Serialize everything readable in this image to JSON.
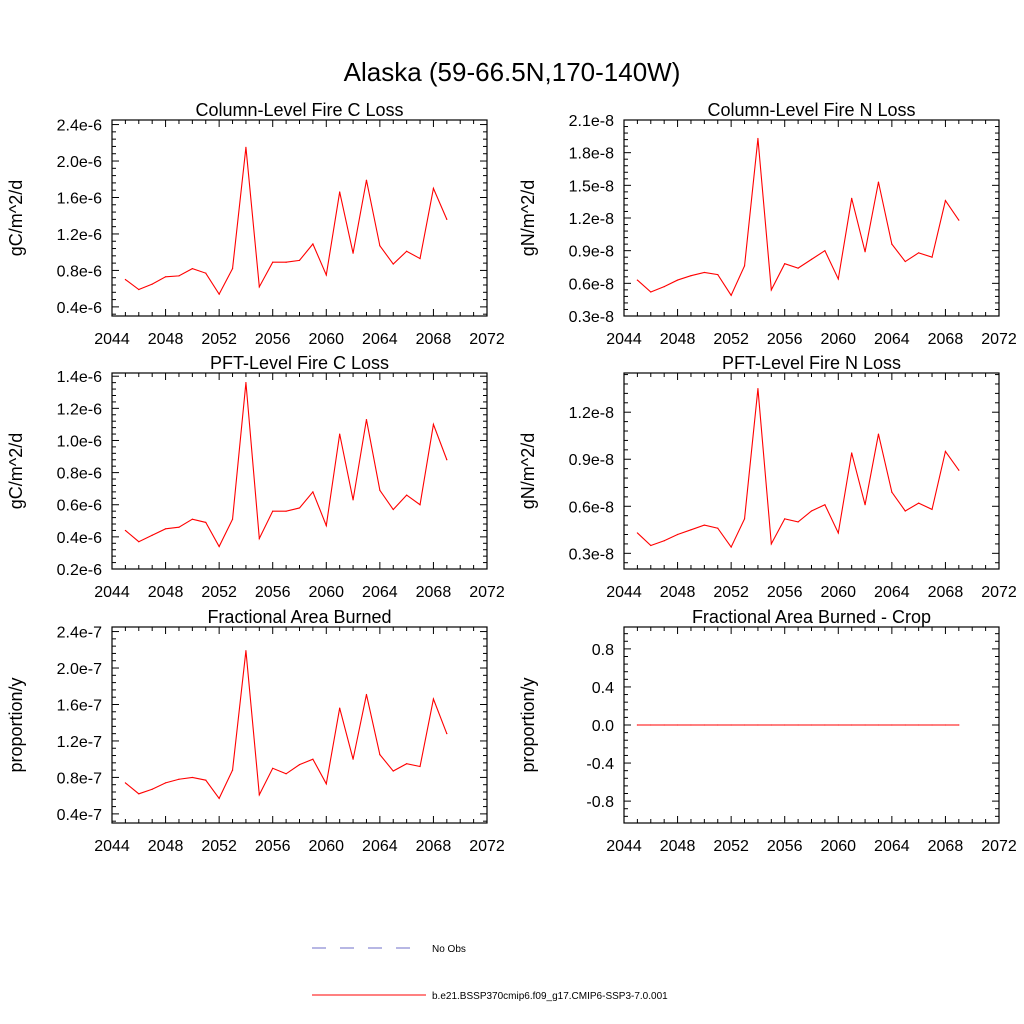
{
  "title": "Alaska (59-66.5N,170-140W)",
  "colors": {
    "series": "#ff0000",
    "obs": "#6f6fc8",
    "axis": "#000000"
  },
  "legend": {
    "obs_label": "No Obs",
    "series_label": "b.e21.BSSP370cmip6.f09_g17.CMIP6-SSP3-7.0.001"
  },
  "chart_data": [
    {
      "type": "line",
      "title": "Column-Level Fire C Loss",
      "ylabel": "gC/m^2/d",
      "xlim": [
        2044,
        2072
      ],
      "ylim": [
        3e-07,
        2.45e-06
      ],
      "xticks": [
        2044,
        2048,
        2052,
        2056,
        2060,
        2064,
        2068,
        2072
      ],
      "yticks": [
        4e-07,
        8e-07,
        1.2e-06,
        1.6e-06,
        2e-06,
        2.4e-06
      ],
      "ytick_labels": [
        "0.4e-6",
        "0.8e-6",
        "1.2e-6",
        "1.6e-6",
        "2.0e-6",
        "2.4e-6"
      ],
      "series": [
        {
          "x": [
            2045,
            2046,
            2047,
            2048,
            2049,
            2050,
            2051,
            2052,
            2053,
            2054,
            2055,
            2056,
            2057,
            2058,
            2059,
            2060,
            2061,
            2062,
            2063,
            2064,
            2065,
            2066,
            2067,
            2068,
            2069
          ],
          "y": [
            7e-07,
            5.9e-07,
            6.5e-07,
            7.3e-07,
            7.4e-07,
            8.2e-07,
            7.7e-07,
            5.4e-07,
            8.2e-07,
            2.15e-06,
            6.2e-07,
            8.9e-07,
            8.9e-07,
            9.1e-07,
            1.09e-06,
            7.5e-07,
            1.66e-06,
            9.9e-07,
            1.79e-06,
            1.07e-06,
            8.7e-07,
            1.01e-06,
            9.3e-07,
            1.7e-06,
            1.36e-06
          ]
        }
      ]
    },
    {
      "type": "line",
      "title": "Column-Level Fire N Loss",
      "ylabel": "gN/m^2/d",
      "xlim": [
        2044,
        2072
      ],
      "ylim": [
        3e-09,
        2.1e-08
      ],
      "xticks": [
        2044,
        2048,
        2052,
        2056,
        2060,
        2064,
        2068,
        2072
      ],
      "yticks": [
        3e-09,
        6e-09,
        9e-09,
        1.2e-08,
        1.5e-08,
        1.8e-08,
        2.1e-08
      ],
      "ytick_labels": [
        "0.3e-8",
        "0.6e-8",
        "0.9e-8",
        "1.2e-8",
        "1.5e-8",
        "1.8e-8",
        "2.1e-8"
      ],
      "series": [
        {
          "x": [
            2045,
            2046,
            2047,
            2048,
            2049,
            2050,
            2051,
            2052,
            2053,
            2054,
            2055,
            2056,
            2057,
            2058,
            2059,
            2060,
            2061,
            2062,
            2063,
            2064,
            2065,
            2066,
            2067,
            2068,
            2069
          ],
          "y": [
            6.3e-09,
            5.2e-09,
            5.7e-09,
            6.3e-09,
            6.7e-09,
            7e-09,
            6.8e-09,
            4.9e-09,
            7.6e-09,
            1.93e-08,
            5.4e-09,
            7.8e-09,
            7.4e-09,
            8.2e-09,
            9e-09,
            6.4e-09,
            1.38e-08,
            8.9e-09,
            1.53e-08,
            9.6e-09,
            8e-09,
            8.8e-09,
            8.4e-09,
            1.36e-08,
            1.18e-08
          ]
        }
      ]
    },
    {
      "type": "line",
      "title": "PFT-Level Fire C Loss",
      "ylabel": "gC/m^2/d",
      "xlim": [
        2044,
        2072
      ],
      "ylim": [
        2e-07,
        1.42e-06
      ],
      "xticks": [
        2044,
        2048,
        2052,
        2056,
        2060,
        2064,
        2068,
        2072
      ],
      "yticks": [
        2e-07,
        4e-07,
        6e-07,
        8e-07,
        1e-06,
        1.2e-06,
        1.4e-06
      ],
      "ytick_labels": [
        "0.2e-6",
        "0.4e-6",
        "0.6e-6",
        "0.8e-6",
        "1.0e-6",
        "1.2e-6",
        "1.4e-6"
      ],
      "series": [
        {
          "x": [
            2045,
            2046,
            2047,
            2048,
            2049,
            2050,
            2051,
            2052,
            2053,
            2054,
            2055,
            2056,
            2057,
            2058,
            2059,
            2060,
            2061,
            2062,
            2063,
            2064,
            2065,
            2066,
            2067,
            2068,
            2069
          ],
          "y": [
            4.4e-07,
            3.7e-07,
            4.1e-07,
            4.5e-07,
            4.6e-07,
            5.1e-07,
            4.9e-07,
            3.4e-07,
            5.1e-07,
            1.36e-06,
            3.9e-07,
            5.6e-07,
            5.6e-07,
            5.8e-07,
            6.8e-07,
            4.7e-07,
            1.04e-06,
            6.3e-07,
            1.13e-06,
            6.9e-07,
            5.7e-07,
            6.6e-07,
            6e-07,
            1.1e-06,
            8.8e-07
          ]
        }
      ]
    },
    {
      "type": "line",
      "title": "PFT-Level Fire N Loss",
      "ylabel": "gN/m^2/d",
      "xlim": [
        2044,
        2072
      ],
      "ylim": [
        2e-09,
        1.45e-08
      ],
      "xticks": [
        2044,
        2048,
        2052,
        2056,
        2060,
        2064,
        2068,
        2072
      ],
      "yticks": [
        3e-09,
        6e-09,
        9e-09,
        1.2e-08
      ],
      "ytick_labels": [
        "0.3e-8",
        "0.6e-8",
        "0.9e-8",
        "1.2e-8"
      ],
      "series": [
        {
          "x": [
            2045,
            2046,
            2047,
            2048,
            2049,
            2050,
            2051,
            2052,
            2053,
            2054,
            2055,
            2056,
            2057,
            2058,
            2059,
            2060,
            2061,
            2062,
            2063,
            2064,
            2065,
            2066,
            2067,
            2068,
            2069
          ],
          "y": [
            4.3e-09,
            3.5e-09,
            3.8e-09,
            4.2e-09,
            4.5e-09,
            4.8e-09,
            4.6e-09,
            3.4e-09,
            5.2e-09,
            1.35e-08,
            3.6e-09,
            5.2e-09,
            5e-09,
            5.7e-09,
            6.1e-09,
            4.3e-09,
            9.4e-09,
            6.1e-09,
            1.06e-08,
            6.9e-09,
            5.7e-09,
            6.2e-09,
            5.8e-09,
            9.5e-09,
            8.3e-09
          ]
        }
      ]
    },
    {
      "type": "line",
      "title": "Fractional Area Burned",
      "ylabel": "proportion/y",
      "xlim": [
        2044,
        2072
      ],
      "ylim": [
        3e-08,
        2.45e-07
      ],
      "xticks": [
        2044,
        2048,
        2052,
        2056,
        2060,
        2064,
        2068,
        2072
      ],
      "yticks": [
        4e-08,
        8e-08,
        1.2e-07,
        1.6e-07,
        2e-07,
        2.4e-07
      ],
      "ytick_labels": [
        "0.4e-7",
        "0.8e-7",
        "1.2e-7",
        "1.6e-7",
        "2.0e-7",
        "2.4e-7"
      ],
      "series": [
        {
          "x": [
            2045,
            2046,
            2047,
            2048,
            2049,
            2050,
            2051,
            2052,
            2053,
            2054,
            2055,
            2056,
            2057,
            2058,
            2059,
            2060,
            2061,
            2062,
            2063,
            2064,
            2065,
            2066,
            2067,
            2068,
            2069
          ],
          "y": [
            7.4e-08,
            6.2e-08,
            6.7e-08,
            7.4e-08,
            7.8e-08,
            8e-08,
            7.7e-08,
            5.7e-08,
            8.8e-08,
            2.19e-07,
            6.1e-08,
            9e-08,
            8.4e-08,
            9.4e-08,
            1e-07,
            7.3e-08,
            1.56e-07,
            1e-07,
            1.71e-07,
            1.05e-07,
            8.7e-08,
            9.5e-08,
            9.2e-08,
            1.66e-07,
            1.28e-07
          ]
        }
      ]
    },
    {
      "type": "line",
      "title": "Fractional Area Burned - Crop",
      "ylabel": "proportion/y",
      "xlim": [
        2044,
        2072
      ],
      "ylim": [
        -1.03,
        1.03
      ],
      "xticks": [
        2044,
        2048,
        2052,
        2056,
        2060,
        2064,
        2068,
        2072
      ],
      "yticks": [
        -0.8,
        -0.4,
        0.0,
        0.4,
        0.8
      ],
      "ytick_labels": [
        "-0.8",
        "-0.4",
        "0.0",
        "0.4",
        "0.8"
      ],
      "series": [
        {
          "x": [
            2045,
            2046,
            2047,
            2048,
            2049,
            2050,
            2051,
            2052,
            2053,
            2054,
            2055,
            2056,
            2057,
            2058,
            2059,
            2060,
            2061,
            2062,
            2063,
            2064,
            2065,
            2066,
            2067,
            2068,
            2069
          ],
          "y": [
            0,
            0,
            0,
            0,
            0,
            0,
            0,
            0,
            0,
            0,
            0,
            0,
            0,
            0,
            0,
            0,
            0,
            0,
            0,
            0,
            0,
            0,
            0,
            0,
            0
          ]
        }
      ]
    }
  ]
}
